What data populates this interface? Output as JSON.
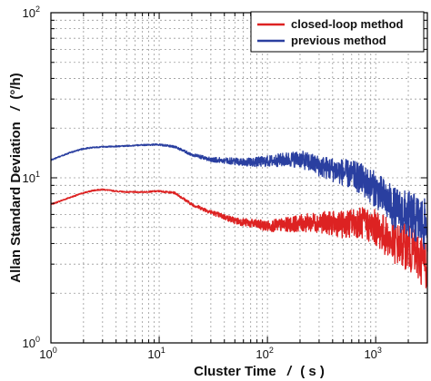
{
  "chart_data": {
    "type": "line",
    "title": "",
    "xlabel": "Cluster Time",
    "xlabel_symbol": "/",
    "xlabel_unit": "( s )",
    "ylabel": "Allan Standard Deviation",
    "ylabel_symbol": "/",
    "ylabel_unit": "(°/h)",
    "x_scale": "log",
    "y_scale": "log",
    "xlim": [
      1,
      3000
    ],
    "ylim": [
      1,
      100
    ],
    "grid": true,
    "legend_position": "top-right",
    "x_ticks": [
      {
        "base": "10",
        "exp": "0"
      },
      {
        "base": "10",
        "exp": "1"
      },
      {
        "base": "10",
        "exp": "2"
      },
      {
        "base": "10",
        "exp": "3"
      }
    ],
    "y_ticks": [
      {
        "base": "10",
        "exp": "0"
      },
      {
        "base": "10",
        "exp": "1"
      },
      {
        "base": "10",
        "exp": "2"
      }
    ],
    "series": [
      {
        "name": "closed-loop method",
        "color": "#dd2222",
        "x": [
          1,
          1.5,
          2,
          2.5,
          3,
          4,
          5,
          7,
          10,
          14,
          20,
          30,
          50,
          70,
          100,
          150,
          200,
          300,
          500,
          700,
          1000,
          1500,
          2000,
          2500,
          3000
        ],
        "y": [
          6.9,
          7.6,
          8.1,
          8.4,
          8.5,
          8.3,
          8.2,
          8.2,
          8.3,
          8.1,
          6.9,
          6.2,
          5.5,
          5.3,
          5.1,
          5.2,
          5.3,
          5.4,
          5.2,
          5.4,
          5.0,
          4.0,
          3.8,
          3.3,
          3.0
        ]
      },
      {
        "name": "previous method",
        "color": "#2a3fa0",
        "x": [
          1,
          1.5,
          2,
          2.5,
          3,
          4,
          5,
          7,
          10,
          14,
          20,
          30,
          50,
          70,
          100,
          150,
          200,
          300,
          500,
          700,
          1000,
          1500,
          2000,
          2500,
          3000
        ],
        "y": [
          12.8,
          14.2,
          15.0,
          15.3,
          15.4,
          15.5,
          15.6,
          15.8,
          15.9,
          15.4,
          13.8,
          12.9,
          12.6,
          12.4,
          12.6,
          12.9,
          13.0,
          11.8,
          10.8,
          10.0,
          8.5,
          6.5,
          6.0,
          5.5,
          5.0
        ]
      }
    ]
  }
}
